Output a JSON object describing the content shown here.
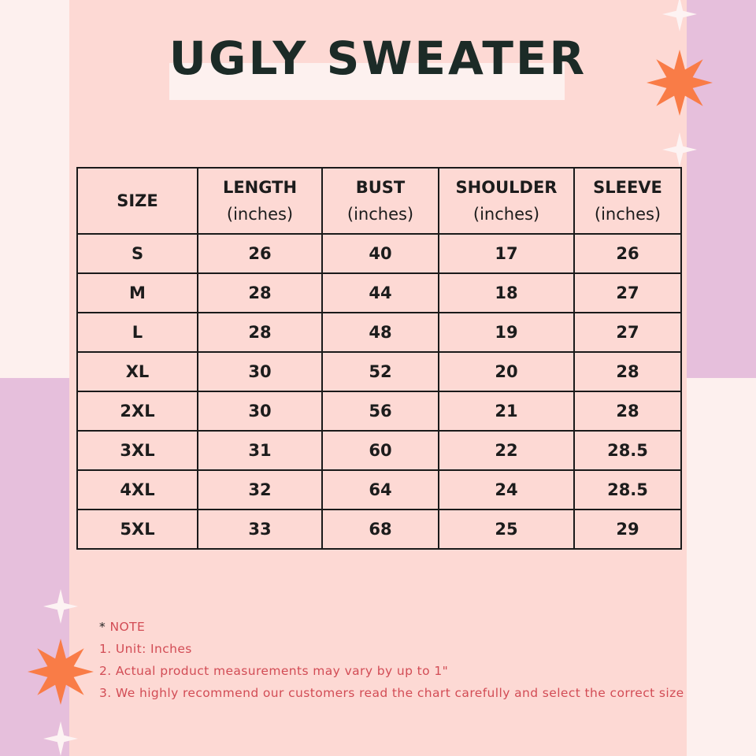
{
  "title": "UGLY SWEATER",
  "colors": {
    "background": "#fdd9d4",
    "accent_lilac": "#e6bfdc",
    "star_orange": "#f97c47",
    "note_text": "#d24c55"
  },
  "table": {
    "headers": [
      {
        "line1": "SIZE",
        "line2": ""
      },
      {
        "line1": "LENGTH",
        "line2": "(inches)"
      },
      {
        "line1": "BUST",
        "line2": "(inches)"
      },
      {
        "line1": "SHOULDER",
        "line2": "(inches)"
      },
      {
        "line1": "SLEEVE",
        "line2": "(inches)"
      }
    ],
    "rows": [
      [
        "S",
        "26",
        "40",
        "17",
        "26"
      ],
      [
        "M",
        "28",
        "44",
        "18",
        "27"
      ],
      [
        "L",
        "28",
        "48",
        "19",
        "27"
      ],
      [
        "XL",
        "30",
        "52",
        "20",
        "28"
      ],
      [
        "2XL",
        "30",
        "56",
        "21",
        "28"
      ],
      [
        "3XL",
        "31",
        "60",
        "22",
        "28.5"
      ],
      [
        "4XL",
        "32",
        "64",
        "24",
        "28.5"
      ],
      [
        "5XL",
        "33",
        "68",
        "25",
        "29"
      ]
    ]
  },
  "notes": {
    "asterisk": "*",
    "heading": "NOTE",
    "items": [
      "1. Unit: Inches",
      "2. Actual product measurements may vary by up to 1\"",
      "3. We highly recommend our customers read the chart carefully and select the correct size"
    ]
  }
}
